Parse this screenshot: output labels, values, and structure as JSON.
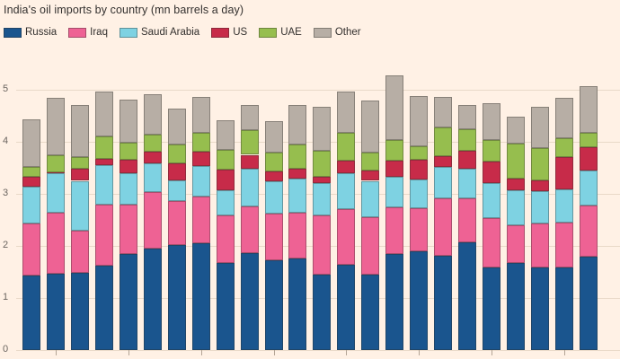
{
  "chart": {
    "background_color": "#fff1e5",
    "title_color": "#33302e",
    "axis_label_color": "#6b6560",
    "gridline_color": "#e9d9c8"
  },
  "chart_data": {
    "type": "bar",
    "stacked": true,
    "title": "India's oil imports by country (mn barrels a day)",
    "xlabel": "",
    "ylabel": "mn barrels a day",
    "ylim": [
      0,
      5
    ],
    "yticks": [
      0,
      1,
      2,
      3,
      4,
      5
    ],
    "grid": true,
    "legend_position": "top",
    "n_bars": 24,
    "x_tick_labels": "cut off in screenshot (tick marks only, every 3rd bar)",
    "series": [
      {
        "name": "Russia",
        "color": "#1a558e",
        "values": [
          1.43,
          1.47,
          1.49,
          1.62,
          1.84,
          1.95,
          2.01,
          2.05,
          1.68,
          1.87,
          1.72,
          1.76,
          1.44,
          1.64,
          1.45,
          1.85,
          1.9,
          1.81,
          2.07,
          1.58,
          1.67,
          1.58,
          1.58,
          1.79
        ]
      },
      {
        "name": "Iraq",
        "color": "#ee6294",
        "values": [
          1.0,
          1.17,
          0.8,
          1.18,
          0.96,
          1.08,
          0.86,
          0.89,
          0.91,
          0.89,
          0.9,
          0.88,
          1.15,
          1.06,
          1.1,
          0.89,
          0.83,
          1.1,
          0.84,
          0.95,
          0.73,
          0.85,
          0.86,
          0.98
        ]
      },
      {
        "name": "Saudi Arabia",
        "color": "#7ed2e2",
        "values": [
          0.7,
          0.76,
          0.96,
          0.75,
          0.59,
          0.56,
          0.39,
          0.59,
          0.48,
          0.72,
          0.62,
          0.66,
          0.62,
          0.69,
          0.7,
          0.58,
          0.55,
          0.6,
          0.58,
          0.68,
          0.67,
          0.62,
          0.65,
          0.68
        ]
      },
      {
        "name": "US",
        "color": "#c72b49",
        "values": [
          0.2,
          0.02,
          0.23,
          0.13,
          0.26,
          0.22,
          0.33,
          0.28,
          0.39,
          0.27,
          0.19,
          0.19,
          0.11,
          0.25,
          0.2,
          0.31,
          0.37,
          0.21,
          0.33,
          0.41,
          0.22,
          0.21,
          0.62,
          0.45
        ]
      },
      {
        "name": "UAE",
        "color": "#96be4e",
        "values": [
          0.19,
          0.32,
          0.23,
          0.43,
          0.34,
          0.33,
          0.36,
          0.36,
          0.39,
          0.47,
          0.36,
          0.46,
          0.5,
          0.53,
          0.34,
          0.4,
          0.27,
          0.56,
          0.42,
          0.41,
          0.68,
          0.62,
          0.36,
          0.27
        ]
      },
      {
        "name": "Other",
        "color": "#b7aea5",
        "values": [
          0.91,
          1.1,
          1.0,
          0.85,
          0.82,
          0.77,
          0.68,
          0.69,
          0.56,
          0.49,
          0.61,
          0.75,
          0.86,
          0.8,
          1.01,
          1.25,
          0.96,
          0.58,
          0.46,
          0.71,
          0.52,
          0.79,
          0.77,
          0.9
        ]
      }
    ]
  }
}
